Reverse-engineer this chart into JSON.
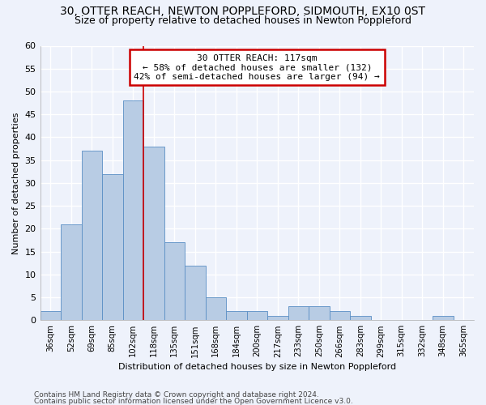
{
  "title1": "30, OTTER REACH, NEWTON POPPLEFORD, SIDMOUTH, EX10 0ST",
  "title2": "Size of property relative to detached houses in Newton Poppleford",
  "xlabel": "Distribution of detached houses by size in Newton Poppleford",
  "ylabel": "Number of detached properties",
  "footer1": "Contains HM Land Registry data © Crown copyright and database right 2024.",
  "footer2": "Contains public sector information licensed under the Open Government Licence v3.0.",
  "bin_labels": [
    "36sqm",
    "52sqm",
    "69sqm",
    "85sqm",
    "102sqm",
    "118sqm",
    "135sqm",
    "151sqm",
    "168sqm",
    "184sqm",
    "200sqm",
    "217sqm",
    "233sqm",
    "250sqm",
    "266sqm",
    "283sqm",
    "299sqm",
    "315sqm",
    "332sqm",
    "348sqm",
    "365sqm"
  ],
  "bar_values": [
    2,
    21,
    37,
    32,
    48,
    38,
    17,
    12,
    5,
    2,
    2,
    1,
    3,
    3,
    2,
    1,
    0,
    0,
    0,
    1,
    0
  ],
  "bar_color": "#b8cce4",
  "bar_edge_color": "#5a8fc4",
  "vline_color": "#cc0000",
  "annotation_text": "30 OTTER REACH: 117sqm\n← 58% of detached houses are smaller (132)\n42% of semi-detached houses are larger (94) →",
  "annotation_box_color": "#ffffff",
  "annotation_box_edge": "#cc0000",
  "ylim": [
    0,
    60
  ],
  "yticks": [
    0,
    5,
    10,
    15,
    20,
    25,
    30,
    35,
    40,
    45,
    50,
    55,
    60
  ],
  "background_color": "#eef2fb",
  "grid_color": "#ffffff",
  "title1_fontsize": 10,
  "title2_fontsize": 9
}
